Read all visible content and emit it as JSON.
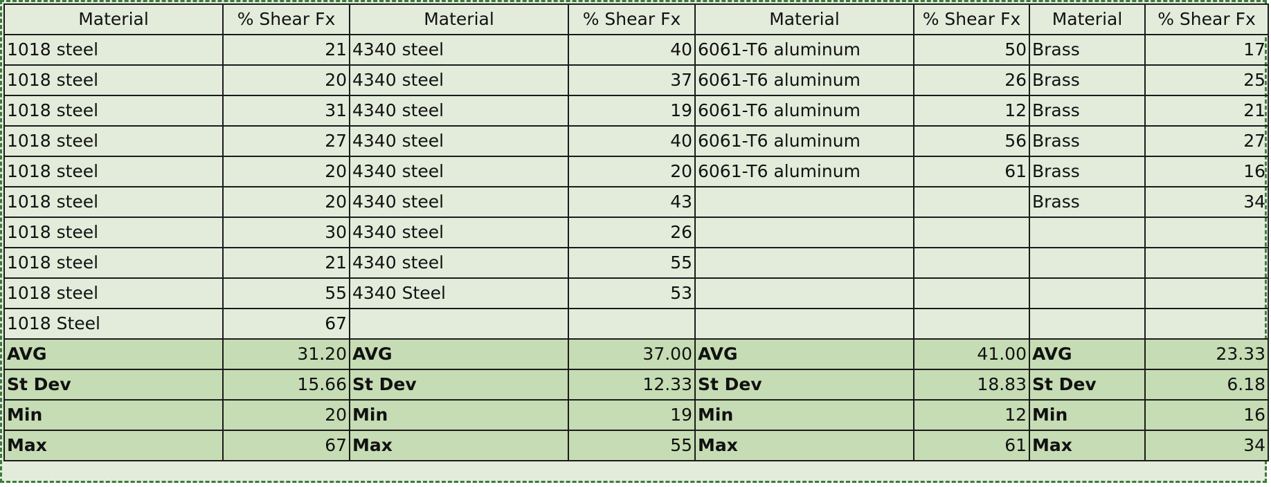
{
  "header": {
    "material_label": "Material",
    "shear_label": "% Shear Fx"
  },
  "rows": [
    {
      "m1": "1018 steel",
      "v1": "21",
      "m2": "4340 steel",
      "v2": "40",
      "m3": "6061-T6 aluminum",
      "v3": "50",
      "m4": "Brass",
      "v4": "17"
    },
    {
      "m1": "1018 steel",
      "v1": "20",
      "m2": "4340 steel",
      "v2": "37",
      "m3": "6061-T6 aluminum",
      "v3": "26",
      "m4": "Brass",
      "v4": "25"
    },
    {
      "m1": "1018 steel",
      "v1": "31",
      "m2": "4340 steel",
      "v2": "19",
      "m3": "6061-T6 aluminum",
      "v3": "12",
      "m4": "Brass",
      "v4": "21"
    },
    {
      "m1": "1018 steel",
      "v1": "27",
      "m2": "4340 steel",
      "v2": "40",
      "m3": "6061-T6 aluminum",
      "v3": "56",
      "m4": "Brass",
      "v4": "27"
    },
    {
      "m1": "1018 steel",
      "v1": "20",
      "m2": "4340 steel",
      "v2": "20",
      "m3": "6061-T6 aluminum",
      "v3": "61",
      "m4": "Brass",
      "v4": "16"
    },
    {
      "m1": "1018 steel",
      "v1": "20",
      "m2": "4340 steel",
      "v2": "43",
      "m3": "",
      "v3": "",
      "m4": "Brass",
      "v4": "34"
    },
    {
      "m1": "1018 steel",
      "v1": "30",
      "m2": "4340 steel",
      "v2": "26",
      "m3": "",
      "v3": "",
      "m4": "",
      "v4": ""
    },
    {
      "m1": "1018 steel",
      "v1": "21",
      "m2": "4340 steel",
      "v2": "55",
      "m3": "",
      "v3": "",
      "m4": "",
      "v4": ""
    },
    {
      "m1": "1018 steel",
      "v1": "55",
      "m2": "4340 Steel",
      "v2": "53",
      "m3": "",
      "v3": "",
      "m4": "",
      "v4": ""
    },
    {
      "m1": "1018 Steel",
      "v1": "67",
      "m2": "",
      "v2": "",
      "m3": "",
      "v3": "",
      "m4": "",
      "v4": ""
    }
  ],
  "stats": [
    {
      "label": "AVG",
      "v1": "31.20",
      "v2": "37.00",
      "v3": "41.00",
      "v4": "23.33"
    },
    {
      "label": "St Dev",
      "v1": "15.66",
      "v2": "12.33",
      "v3": "18.83",
      "v4": "6.18"
    },
    {
      "label": "Min",
      "v1": "20",
      "v2": "19",
      "v3": "12",
      "v4": "16"
    },
    {
      "label": "Max",
      "v1": "67",
      "v2": "55",
      "v3": "61",
      "v4": "34"
    }
  ]
}
